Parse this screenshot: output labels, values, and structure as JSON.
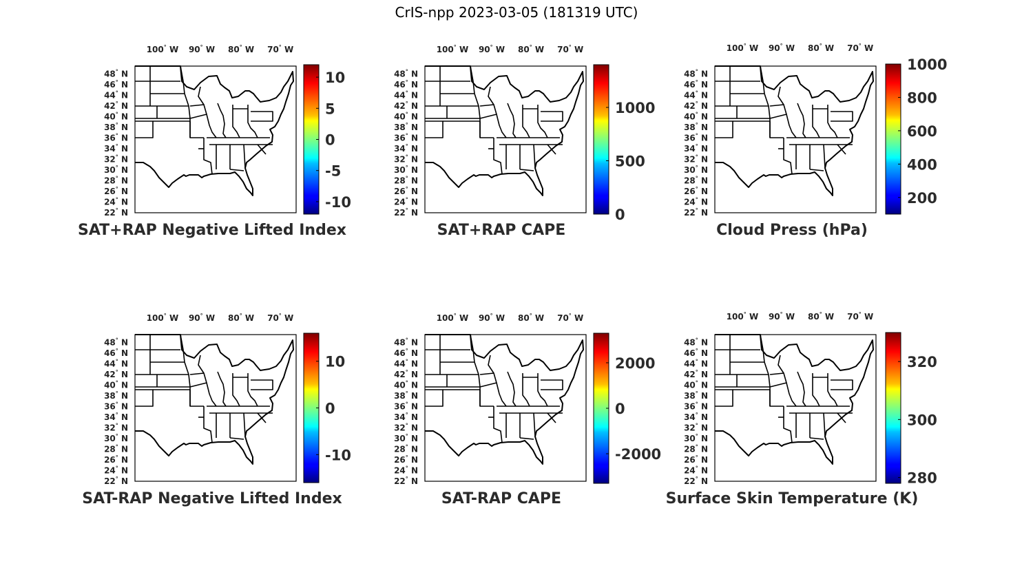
{
  "figure": {
    "title": "CrIS-npp 2023-03-05 (181319 UTC)"
  },
  "map": {
    "lon_ticks": [
      "100",
      "90",
      "80",
      "70"
    ],
    "lon_suffix": "W",
    "lat_ticks": [
      "48",
      "46",
      "44",
      "42",
      "40",
      "38",
      "36",
      "34",
      "32",
      "30",
      "28",
      "26",
      "24",
      "22"
    ],
    "lat_suffix": "N",
    "lon_range": [
      -107,
      -66
    ],
    "lat_range": [
      22,
      49.5
    ],
    "region": "Eastern United States",
    "colormap": "jet",
    "data_fields": "empty"
  },
  "chart_data": [
    {
      "type": "heatmap",
      "title": "SAT+RAP Negative Lifted Index",
      "colorbar_ticks": [
        "10",
        "5",
        "0",
        "-5",
        "-10"
      ],
      "colorbar_range": [
        -12,
        12
      ]
    },
    {
      "type": "heatmap",
      "title": "SAT+RAP CAPE",
      "colorbar_ticks": [
        "1000",
        "500",
        "0"
      ],
      "colorbar_range": [
        0,
        1400
      ]
    },
    {
      "type": "heatmap",
      "title": "Cloud Press (hPa)",
      "colorbar_ticks": [
        "1000",
        "800",
        "600",
        "400",
        "200"
      ],
      "colorbar_range": [
        100,
        1000
      ]
    },
    {
      "type": "heatmap",
      "title": "SAT-RAP Negative Lifted Index",
      "colorbar_ticks": [
        "10",
        "0",
        "-10"
      ],
      "colorbar_range": [
        -16,
        16
      ]
    },
    {
      "type": "heatmap",
      "title": "SAT-RAP CAPE",
      "colorbar_ticks": [
        "2000",
        "0",
        "-2000"
      ],
      "colorbar_range": [
        -3300,
        3300
      ]
    },
    {
      "type": "heatmap",
      "title": "Surface Skin Temperature (K)",
      "colorbar_ticks": [
        "320",
        "300",
        "280"
      ],
      "colorbar_range": [
        278,
        330
      ]
    }
  ]
}
